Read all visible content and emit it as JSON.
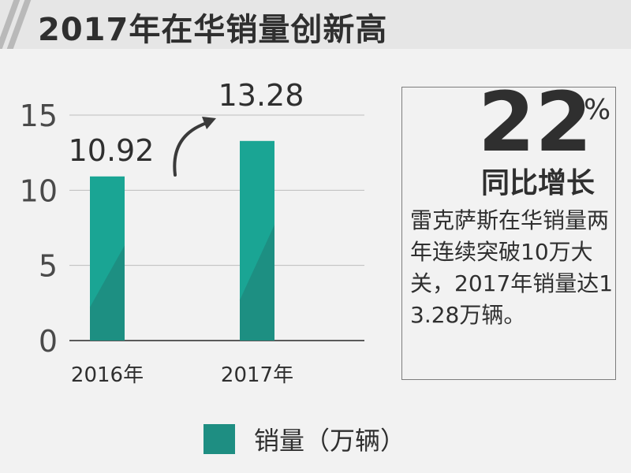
{
  "header": {
    "title": "2017年在华销量创新高"
  },
  "chart_data": {
    "type": "bar",
    "categories": [
      "2016年",
      "2017年"
    ],
    "series": [
      {
        "name": "销量（万辆）",
        "values": [
          10.92,
          13.28
        ]
      }
    ],
    "ylim": [
      0,
      15
    ],
    "yticks": [
      0,
      5,
      10,
      15
    ],
    "grid": true,
    "legend_position": "bottom",
    "bar_color": "#1aa594",
    "bar_shadow_color": "#1d8f82"
  },
  "callout": {
    "percent": "22",
    "percent_sign": "%",
    "label": "同比增长",
    "text": "雷克萨斯在华销量两年连续突破10万大关，2017年销量达13.28万辆。"
  },
  "legend": {
    "label": "销量（万辆）"
  }
}
